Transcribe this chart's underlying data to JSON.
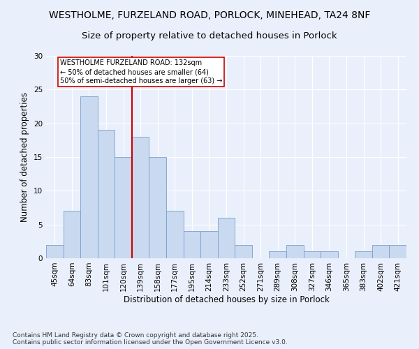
{
  "title1": "WESTHOLME, FURZELAND ROAD, PORLOCK, MINEHEAD, TA24 8NF",
  "title2": "Size of property relative to detached houses in Porlock",
  "xlabel": "Distribution of detached houses by size in Porlock",
  "ylabel": "Number of detached properties",
  "bar_labels": [
    "45sqm",
    "64sqm",
    "83sqm",
    "101sqm",
    "120sqm",
    "139sqm",
    "158sqm",
    "177sqm",
    "195sqm",
    "214sqm",
    "233sqm",
    "252sqm",
    "271sqm",
    "289sqm",
    "308sqm",
    "327sqm",
    "346sqm",
    "365sqm",
    "383sqm",
    "402sqm",
    "421sqm"
  ],
  "bar_values": [
    2,
    7,
    24,
    19,
    15,
    18,
    15,
    7,
    4,
    4,
    6,
    2,
    0,
    1,
    2,
    1,
    1,
    0,
    1,
    2,
    2
  ],
  "bar_color": "#c9d9f0",
  "bar_edge_color": "#7a9fcb",
  "vline_color": "#cc0000",
  "annotation_box_text": "WESTHOLME FURZELAND ROAD: 132sqm\n← 50% of detached houses are smaller (64)\n50% of semi-detached houses are larger (63) →",
  "footnote": "Contains HM Land Registry data © Crown copyright and database right 2025.\nContains public sector information licensed under the Open Government Licence v3.0.",
  "ylim": [
    0,
    30
  ],
  "yticks": [
    0,
    5,
    10,
    15,
    20,
    25,
    30
  ],
  "bg_color": "#eaf0fb",
  "title_fontsize": 10,
  "subtitle_fontsize": 9.5,
  "axis_label_fontsize": 8.5,
  "tick_fontsize": 7.5,
  "footnote_fontsize": 6.5
}
